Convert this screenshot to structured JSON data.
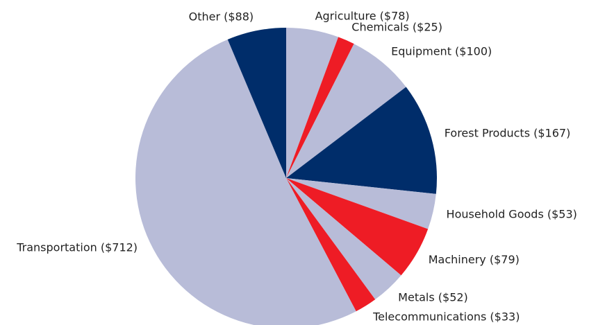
{
  "chart_data": {
    "type": "pie",
    "categories": [
      "Agriculture ($78)",
      "Chemicals ($25)",
      "Equipment ($100)",
      "Forest Products ($167)",
      "Household Goods ($53)",
      "Machinery ($79)",
      "Metals ($52)",
      "Telecommunications ($33)",
      "Transportation ($712)",
      "Other ($88)"
    ],
    "values": [
      78,
      25,
      100,
      167,
      53,
      79,
      52,
      33,
      712,
      88
    ],
    "colors": [
      "#b8bcd8",
      "#ee1c25",
      "#b8bcd8",
      "#002d6a",
      "#b8bcd8",
      "#ee1c25",
      "#b8bcd8",
      "#ee1c25",
      "#b8bcd8",
      "#002d6a"
    ]
  }
}
